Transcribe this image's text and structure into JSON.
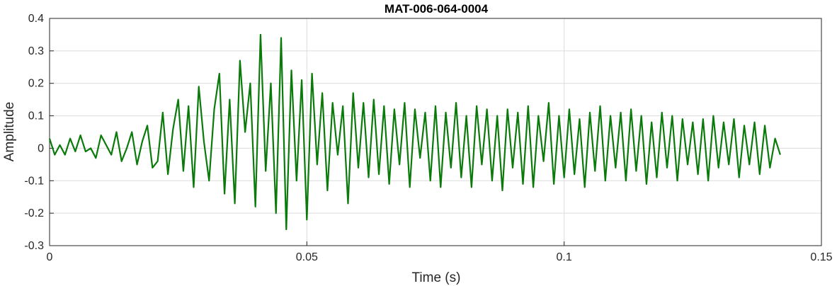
{
  "chart_data": {
    "type": "line",
    "title": "MAT-006-064-0004",
    "xlabel": "Time (s)",
    "ylabel": "Amplitude",
    "xlim": [
      0,
      0.15
    ],
    "ylim": [
      -0.3,
      0.4
    ],
    "xticks": [
      0,
      0.05,
      0.1,
      0.15
    ],
    "xtick_labels": [
      "0",
      "0.05",
      "0.1",
      "0.15"
    ],
    "yticks": [
      -0.3,
      -0.2,
      -0.1,
      0,
      0.1,
      0.2,
      0.3,
      0.4
    ],
    "ytick_labels": [
      "-0.3",
      "-0.2",
      "-0.1",
      "0",
      "0.1",
      "0.2",
      "0.3",
      "0.4"
    ],
    "grid": true,
    "line_color": "#0a7a0a",
    "series": [
      {
        "x": [
          0,
          0.001,
          0.002,
          0.003,
          0.004,
          0.005,
          0.006,
          0.007,
          0.008,
          0.009,
          0.01,
          0.011,
          0.012,
          0.013,
          0.014,
          0.015,
          0.016,
          0.017,
          0.018,
          0.019,
          0.02,
          0.021,
          0.022,
          0.023,
          0.024,
          0.025,
          0.026,
          0.027,
          0.028,
          0.029,
          0.03,
          0.031,
          0.032,
          0.033,
          0.034,
          0.035,
          0.036,
          0.037,
          0.038,
          0.039,
          0.04,
          0.041,
          0.042,
          0.043,
          0.044,
          0.045,
          0.046,
          0.047,
          0.048,
          0.049,
          0.05,
          0.051,
          0.052,
          0.053,
          0.054,
          0.055,
          0.056,
          0.057,
          0.058,
          0.059,
          0.06,
          0.061,
          0.062,
          0.063,
          0.064,
          0.065,
          0.066,
          0.067,
          0.068,
          0.069,
          0.07,
          0.071,
          0.072,
          0.073,
          0.074,
          0.075,
          0.076,
          0.077,
          0.078,
          0.079,
          0.08,
          0.081,
          0.082,
          0.083,
          0.084,
          0.085,
          0.086,
          0.087,
          0.088,
          0.089,
          0.09,
          0.091,
          0.092,
          0.093,
          0.094,
          0.095,
          0.096,
          0.097,
          0.098,
          0.099,
          0.1,
          0.101,
          0.102,
          0.103,
          0.104,
          0.105,
          0.106,
          0.107,
          0.108,
          0.109,
          0.11,
          0.111,
          0.112,
          0.113,
          0.114,
          0.115,
          0.116,
          0.117,
          0.118,
          0.119,
          0.12,
          0.121,
          0.122,
          0.123,
          0.124,
          0.125,
          0.126,
          0.127,
          0.128,
          0.129,
          0.13,
          0.131,
          0.132,
          0.133,
          0.134,
          0.135,
          0.136,
          0.137,
          0.138,
          0.139,
          0.14,
          0.141,
          0.142
        ],
        "y": [
          0.03,
          -0.02,
          0.01,
          -0.02,
          0.03,
          -0.01,
          0.04,
          -0.01,
          0.0,
          -0.03,
          0.04,
          0.01,
          -0.02,
          0.05,
          -0.04,
          0.0,
          0.05,
          -0.05,
          0.02,
          0.07,
          -0.06,
          -0.04,
          0.11,
          -0.08,
          0.06,
          0.15,
          -0.07,
          0.13,
          -0.12,
          0.19,
          0.02,
          -0.1,
          0.12,
          0.23,
          -0.14,
          0.15,
          -0.17,
          0.27,
          0.05,
          0.2,
          -0.18,
          0.35,
          -0.07,
          0.2,
          -0.2,
          0.34,
          -0.25,
          0.24,
          -0.1,
          0.21,
          -0.22,
          0.23,
          -0.05,
          0.17,
          -0.13,
          0.14,
          -0.02,
          0.13,
          -0.17,
          0.17,
          -0.06,
          0.14,
          -0.09,
          0.15,
          -0.08,
          0.13,
          -0.11,
          0.12,
          -0.05,
          0.14,
          -0.12,
          0.12,
          -0.03,
          0.11,
          -0.1,
          0.13,
          -0.12,
          0.11,
          -0.06,
          0.14,
          -0.09,
          0.1,
          -0.12,
          0.13,
          -0.05,
          0.12,
          -0.1,
          0.1,
          -0.13,
          0.12,
          -0.06,
          0.11,
          -0.11,
          0.13,
          -0.12,
          0.1,
          -0.04,
          0.14,
          -0.11,
          0.1,
          -0.09,
          0.12,
          -0.08,
          0.09,
          -0.12,
          0.11,
          -0.07,
          0.13,
          -0.1,
          0.1,
          -0.06,
          0.11,
          -0.1,
          0.12,
          -0.07,
          0.1,
          -0.11,
          0.08,
          -0.09,
          0.11,
          -0.06,
          0.1,
          -0.1,
          0.09,
          -0.05,
          0.08,
          -0.08,
          0.09,
          -0.1,
          0.1,
          -0.06,
          0.08,
          -0.05,
          0.09,
          -0.09,
          0.07,
          -0.05,
          0.08,
          -0.08,
          0.07,
          -0.06,
          0.03,
          -0.02
        ]
      }
    ]
  }
}
